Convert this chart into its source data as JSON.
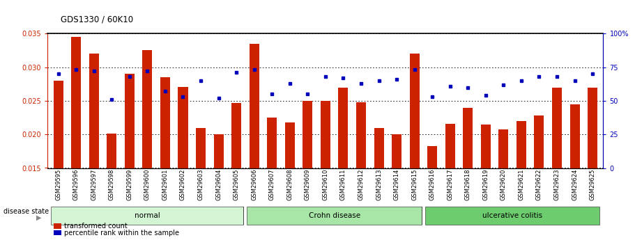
{
  "title": "GDS1330 / 60K10",
  "samples": [
    "GSM29595",
    "GSM29596",
    "GSM29597",
    "GSM29598",
    "GSM29599",
    "GSM29600",
    "GSM29601",
    "GSM29602",
    "GSM29603",
    "GSM29604",
    "GSM29605",
    "GSM29606",
    "GSM29607",
    "GSM29608",
    "GSM29609",
    "GSM29610",
    "GSM29611",
    "GSM29612",
    "GSM29613",
    "GSM29614",
    "GSM29615",
    "GSM29616",
    "GSM29617",
    "GSM29618",
    "GSM29619",
    "GSM29620",
    "GSM29621",
    "GSM29622",
    "GSM29623",
    "GSM29624",
    "GSM29625"
  ],
  "bar_values": [
    0.028,
    0.0345,
    0.032,
    0.0201,
    0.029,
    0.0325,
    0.0285,
    0.0271,
    0.021,
    0.02,
    0.0247,
    0.0335,
    0.0225,
    0.0218,
    0.025,
    0.025,
    0.027,
    0.0248,
    0.021,
    0.02,
    0.032,
    0.0183,
    0.0216,
    0.024,
    0.0215,
    0.0207,
    0.022,
    0.0228,
    0.027,
    0.0245,
    0.027
  ],
  "percentile_values": [
    70,
    73,
    72,
    51,
    68,
    72,
    57,
    53,
    65,
    52,
    71,
    73,
    55,
    63,
    55,
    68,
    67,
    63,
    65,
    66,
    73,
    53,
    61,
    60,
    54,
    62,
    65,
    68,
    68,
    65,
    70
  ],
  "group_labels": [
    "normal",
    "Crohn disease",
    "ulcerative colitis"
  ],
  "group_starts": [
    0,
    11,
    21
  ],
  "group_ends": [
    10,
    20,
    30
  ],
  "group_colors": [
    "#d4f5d4",
    "#a8e6a8",
    "#6dcc6d"
  ],
  "bar_color": "#cc2200",
  "dot_color": "#0000bb",
  "ylim_left": [
    0.015,
    0.035
  ],
  "ylim_right": [
    0,
    100
  ],
  "yticks_left": [
    0.015,
    0.02,
    0.025,
    0.03,
    0.035
  ],
  "yticks_right": [
    0,
    25,
    50,
    75,
    100
  ],
  "background_color": "#ffffff"
}
